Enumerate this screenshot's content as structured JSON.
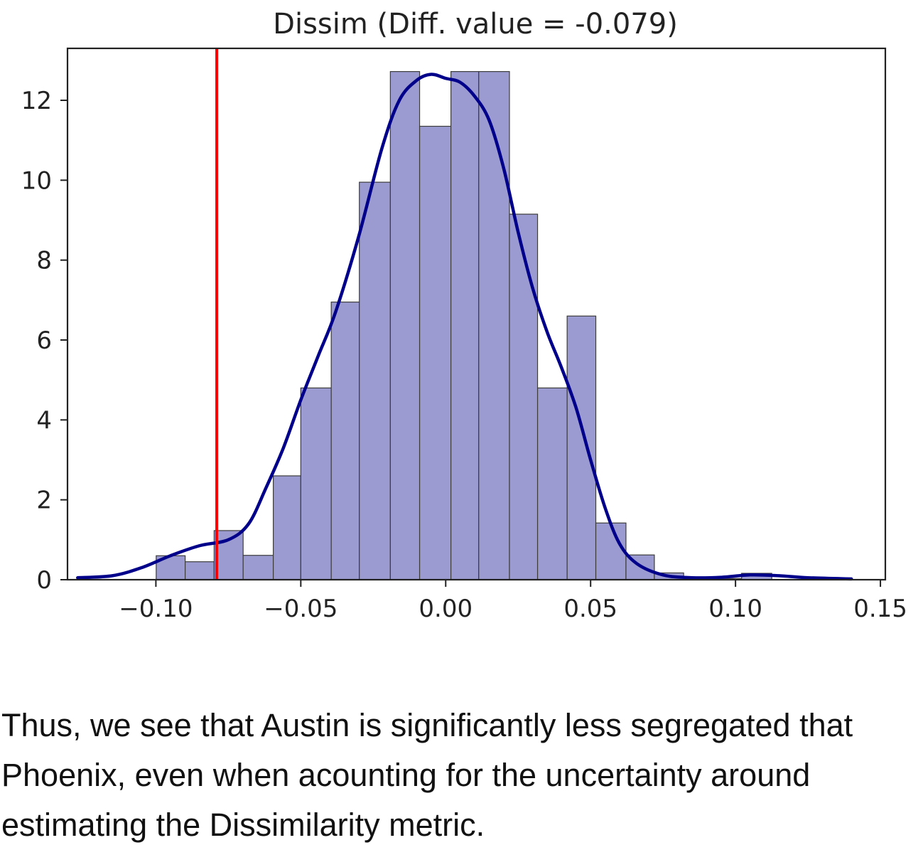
{
  "chart_data": {
    "type": "bar",
    "title": "Dissim (Diff. value = -0.079)",
    "xlabel": "",
    "ylabel": "",
    "xlim": [
      -0.1305,
      0.1517
    ],
    "ylim": [
      0,
      13.3
    ],
    "x_ticks": [
      -0.1,
      -0.05,
      0.0,
      0.05,
      0.1,
      0.15
    ],
    "x_tick_labels": [
      "−0.10",
      "−0.05",
      "0.00",
      "0.05",
      "0.10",
      "0.15"
    ],
    "y_ticks": [
      0,
      2,
      4,
      6,
      8,
      10,
      12
    ],
    "y_tick_labels": [
      "0",
      "2",
      "4",
      "6",
      "8",
      "10",
      "12"
    ],
    "grid": false,
    "bins": [
      {
        "x0": -0.0999,
        "x1": -0.0899,
        "value": 0.6
      },
      {
        "x0": -0.0899,
        "x1": -0.0799,
        "value": 0.45
      },
      {
        "x0": -0.0799,
        "x1": -0.0699,
        "value": 1.23
      },
      {
        "x0": -0.0699,
        "x1": -0.0595,
        "value": 0.61
      },
      {
        "x0": -0.0595,
        "x1": -0.05,
        "value": 2.6
      },
      {
        "x0": -0.05,
        "x1": -0.0395,
        "value": 4.8
      },
      {
        "x0": -0.0395,
        "x1": -0.0298,
        "value": 6.95
      },
      {
        "x0": -0.0298,
        "x1": -0.0191,
        "value": 9.95
      },
      {
        "x0": -0.0191,
        "x1": -0.009,
        "value": 12.72
      },
      {
        "x0": -0.009,
        "x1": 0.0018,
        "value": 11.35
      },
      {
        "x0": 0.0018,
        "x1": 0.0114,
        "value": 12.72
      },
      {
        "x0": 0.0114,
        "x1": 0.022,
        "value": 12.72
      },
      {
        "x0": 0.022,
        "x1": 0.0317,
        "value": 9.15
      },
      {
        "x0": 0.0317,
        "x1": 0.0419,
        "value": 4.8
      },
      {
        "x0": 0.0419,
        "x1": 0.0518,
        "value": 6.6
      },
      {
        "x0": 0.0518,
        "x1": 0.0622,
        "value": 1.42
      },
      {
        "x0": 0.0622,
        "x1": 0.072,
        "value": 0.62
      },
      {
        "x0": 0.072,
        "x1": 0.0821,
        "value": 0.17
      },
      {
        "x0": 0.0821,
        "x1": 0.0921,
        "value": 0.03
      },
      {
        "x0": 0.0921,
        "x1": 0.1021,
        "value": 0.03
      },
      {
        "x0": 0.1021,
        "x1": 0.1125,
        "value": 0.16
      }
    ],
    "kde": {
      "x": [
        -0.127,
        -0.115,
        -0.105,
        -0.095,
        -0.085,
        -0.075,
        -0.068,
        -0.062,
        -0.056,
        -0.05,
        -0.044,
        -0.038,
        -0.03,
        -0.022,
        -0.016,
        -0.01,
        -0.005,
        0.0,
        0.005,
        0.01,
        0.015,
        0.02,
        0.025,
        0.03,
        0.035,
        0.04,
        0.045,
        0.05,
        0.055,
        0.06,
        0.066,
        0.075,
        0.085,
        0.095,
        0.105,
        0.115,
        0.125,
        0.14
      ],
      "y": [
        0.05,
        0.1,
        0.3,
        0.6,
        0.85,
        1.0,
        1.4,
        2.3,
        3.3,
        4.5,
        5.6,
        6.7,
        8.6,
        10.8,
        12.0,
        12.5,
        12.65,
        12.55,
        12.45,
        12.1,
        11.5,
        10.3,
        8.7,
        7.3,
        6.2,
        5.3,
        4.3,
        3.0,
        1.8,
        0.9,
        0.4,
        0.12,
        0.05,
        0.06,
        0.12,
        0.1,
        0.05,
        0.02
      ]
    },
    "reference_line": {
      "x": -0.079,
      "color": "#ff0000"
    },
    "colors": {
      "bar_fill": "#9b9bd1",
      "bar_edge": "#3c3c3c",
      "kde_line": "#00008b",
      "axis": "#222222"
    }
  },
  "caption": "Thus, we see that Austin is significantly less segregated that Phoenix, even when acounting for the uncertainty around estimating the Dissimilarity metric."
}
